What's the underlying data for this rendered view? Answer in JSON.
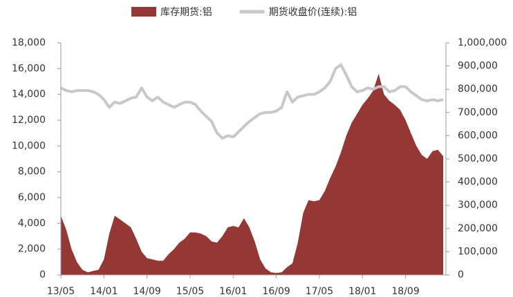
{
  "chart_data": {
    "type": "combo",
    "categories": [
      "13/05",
      null,
      null,
      null,
      null,
      null,
      null,
      null,
      "14/01",
      null,
      null,
      null,
      null,
      null,
      null,
      null,
      "14/09",
      null,
      null,
      null,
      null,
      null,
      null,
      null,
      "15/05",
      null,
      null,
      null,
      null,
      null,
      null,
      null,
      "16/01",
      null,
      null,
      null,
      null,
      null,
      null,
      null,
      "16/09",
      null,
      null,
      null,
      null,
      null,
      null,
      null,
      "17/05",
      null,
      null,
      null,
      null,
      null,
      null,
      null,
      "18/01",
      null,
      null,
      null,
      null,
      null,
      null,
      null,
      "18/09",
      null,
      null,
      null,
      null,
      null,
      null,
      null
    ],
    "series": [
      {
        "name": "库存期货:铝",
        "type": "area",
        "axis": "y2",
        "color": "#953735",
        "values": [
          255000,
          195000,
          110000,
          55000,
          22000,
          11000,
          17000,
          22000,
          67000,
          178000,
          255000,
          239000,
          222000,
          205000,
          155000,
          100000,
          72000,
          67000,
          61000,
          61000,
          89000,
          111000,
          139000,
          156000,
          183000,
          183000,
          178000,
          167000,
          144000,
          139000,
          167000,
          205000,
          211000,
          205000,
          244000,
          205000,
          144000,
          67000,
          28000,
          11000,
          8000,
          11000,
          33000,
          50000,
          139000,
          267000,
          322000,
          317000,
          322000,
          361000,
          417000,
          467000,
          528000,
          600000,
          656000,
          694000,
          733000,
          761000,
          794000,
          867000,
          778000,
          750000,
          733000,
          711000,
          667000,
          611000,
          556000,
          517000,
          500000,
          533000,
          539000,
          511000
        ]
      },
      {
        "name": "期货收盘价(连续):铝",
        "type": "line",
        "axis": "y",
        "color": "#c8c8c8",
        "values": [
          14500,
          14300,
          14200,
          14300,
          14300,
          14300,
          14200,
          14000,
          13600,
          13000,
          13400,
          13300,
          13500,
          13700,
          13800,
          14500,
          13800,
          13500,
          13800,
          13400,
          13200,
          13000,
          13200,
          13400,
          13400,
          13200,
          12700,
          12300,
          11900,
          11000,
          10600,
          10800,
          10700,
          11100,
          11500,
          11900,
          12200,
          12500,
          12600,
          12600,
          12700,
          13000,
          14200,
          13400,
          13800,
          13900,
          14000,
          14000,
          14200,
          14500,
          15000,
          16000,
          16300,
          15500,
          14600,
          14200,
          14300,
          14500,
          14400,
          14600,
          14600,
          14200,
          14300,
          14600,
          14600,
          14200,
          13900,
          13600,
          13500,
          13600,
          13500,
          13600
        ]
      }
    ],
    "ylim": [
      0,
      18000
    ],
    "yticks": [
      0,
      {
        "value": 2000,
        "label": "2,000"
      },
      {
        "value": 4000,
        "label": "4,000"
      },
      {
        "value": 6000,
        "label": "6,000"
      },
      {
        "value": 8000,
        "label": "8,000"
      },
      {
        "value": 10000,
        "label": "10,000"
      },
      {
        "value": 12000,
        "label": "12,000"
      },
      {
        "value": 14000,
        "label": "14,000"
      },
      {
        "value": 16000,
        "label": "16,000"
      },
      {
        "value": 18000,
        "label": "18,000"
      }
    ],
    "y2lim": [
      0,
      1000000
    ],
    "y2ticks": [
      0,
      {
        "value": 100000,
        "label": "100,000"
      },
      {
        "value": 200000,
        "label": "200,000"
      },
      {
        "value": 300000,
        "label": "300,000"
      },
      {
        "value": 400000,
        "label": "400,000"
      },
      {
        "value": 500000,
        "label": "500,000"
      },
      {
        "value": 600000,
        "label": "600,000"
      },
      {
        "value": 700000,
        "label": "700,000"
      },
      {
        "value": 800000,
        "label": "800,000"
      },
      {
        "value": 900000,
        "label": "900,000"
      },
      {
        "value": 1000000,
        "label": "1,000,000"
      }
    ],
    "legend": "top"
  }
}
